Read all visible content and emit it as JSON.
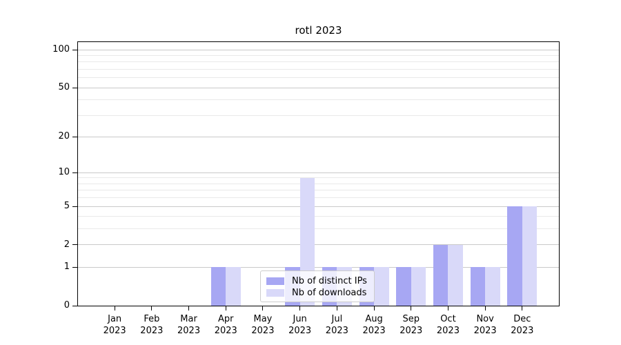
{
  "figure": {
    "title": "rotl 2023"
  },
  "chart_data": {
    "type": "bar",
    "title": "rotl 2023",
    "categories": [
      "Jan",
      "Feb",
      "Mar",
      "Apr",
      "May",
      "Jun",
      "Jul",
      "Aug",
      "Sep",
      "Oct",
      "Nov",
      "Dec"
    ],
    "category_year": "2023",
    "series": [
      {
        "name": "Nb of distinct IPs",
        "color": "#a7a7f3",
        "values": [
          0,
          0,
          0,
          1,
          0,
          1,
          1,
          1,
          1,
          2,
          1,
          5
        ]
      },
      {
        "name": "Nb of downloads",
        "color": "#d9d9f9",
        "values": [
          0,
          0,
          0,
          1,
          0,
          9,
          1,
          1,
          1,
          2,
          1,
          5
        ]
      }
    ],
    "yscale": "log1p",
    "ylim": [
      0,
      115
    ],
    "yticks": [
      0,
      1,
      2,
      5,
      10,
      20,
      50,
      100
    ],
    "minor_yticks": [
      3,
      4,
      6,
      7,
      8,
      9,
      30,
      40,
      60,
      70,
      80,
      90
    ],
    "grid": true,
    "legend_position": "lower center"
  }
}
